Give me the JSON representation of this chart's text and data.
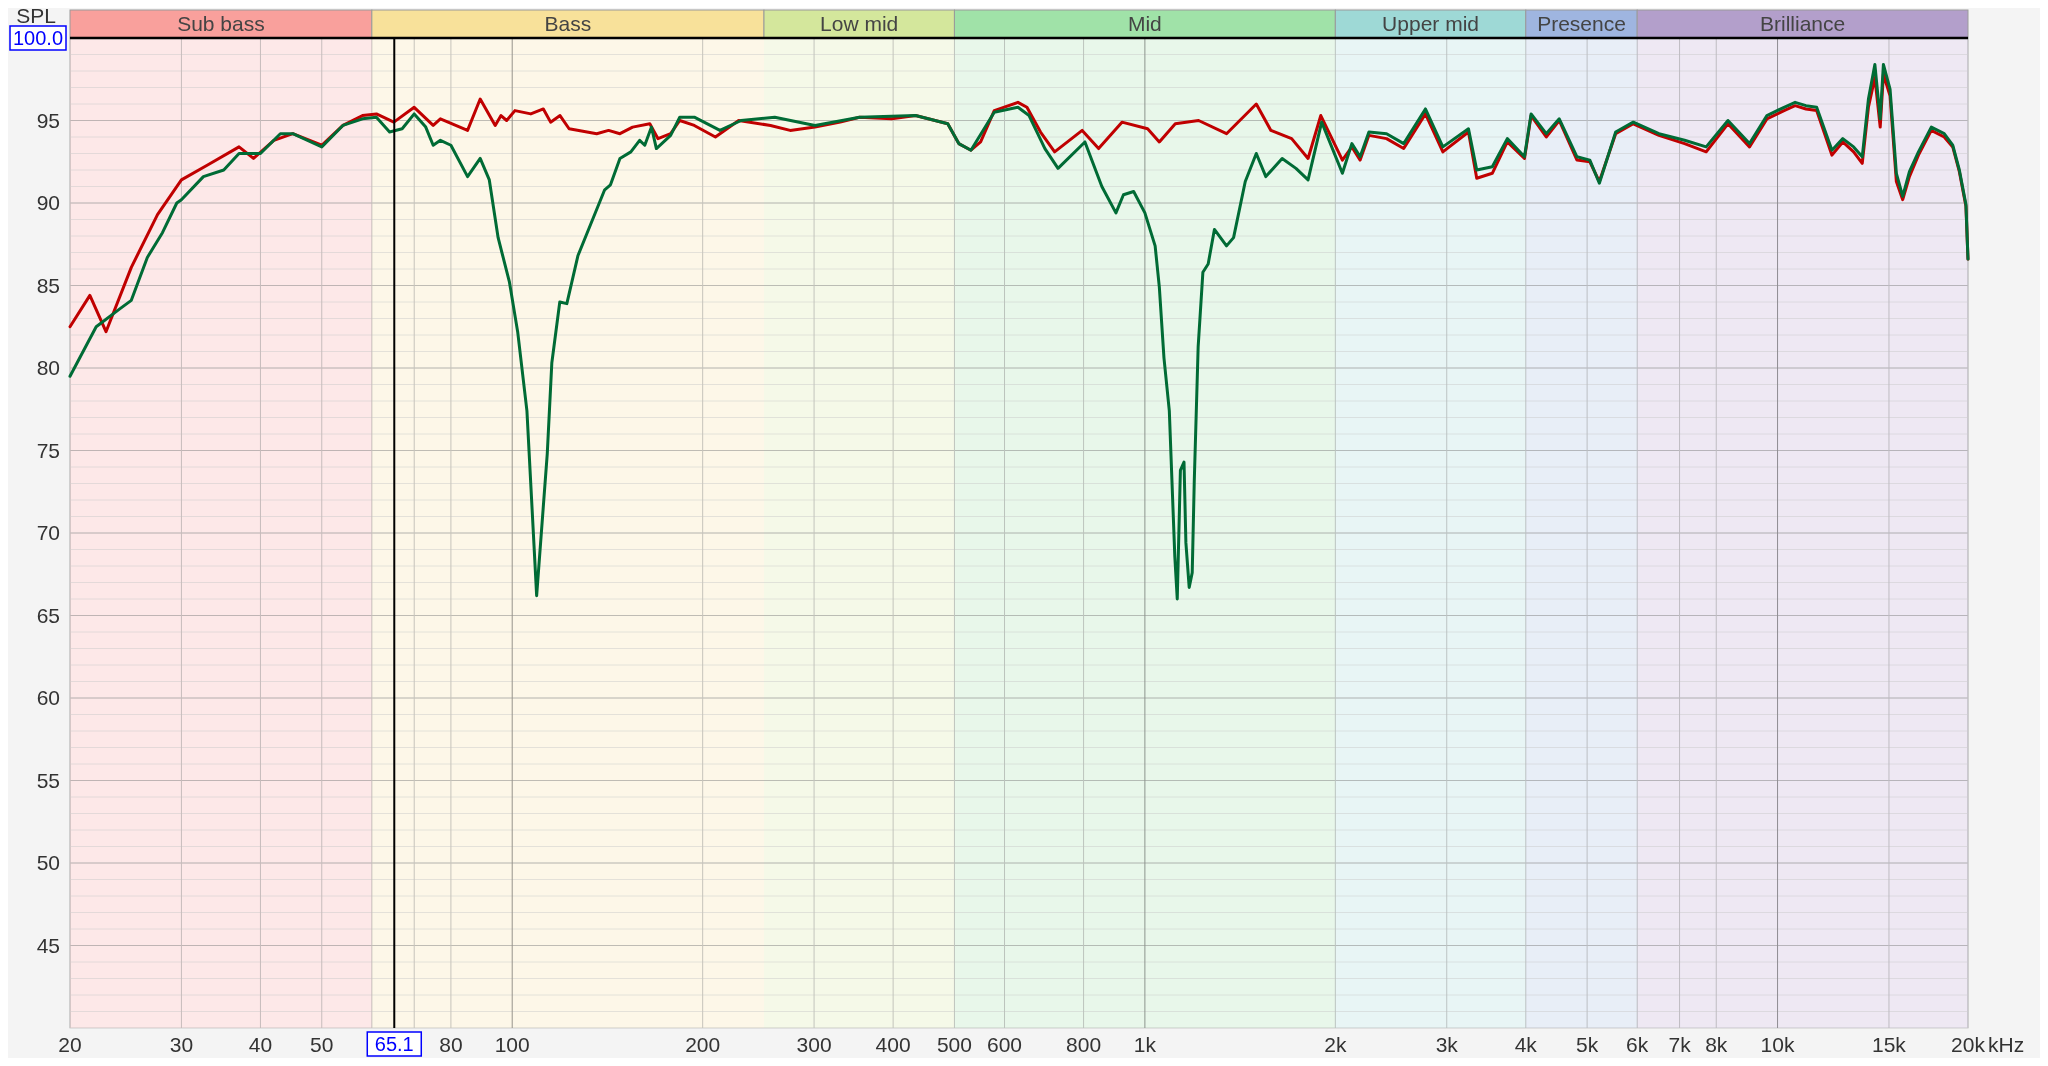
{
  "chart_data": {
    "type": "line",
    "ylabel": "SPL",
    "xlim": [
      20,
      20000
    ],
    "ylim": [
      40,
      100
    ],
    "xlabel": "kHz",
    "log": "x",
    "grid": true,
    "marker": "none",
    "line_style": "solid",
    "xticks": [
      20,
      30,
      40,
      50,
      {
        "value": 60,
        "label": null
      },
      {
        "value": 70,
        "label": null
      },
      80,
      100,
      200,
      300,
      400,
      500,
      600,
      800,
      {
        "value": 1000,
        "label": "1k"
      },
      {
        "value": 2000,
        "label": "2k"
      },
      {
        "value": 3000,
        "label": "3k"
      },
      {
        "value": 4000,
        "label": "4k"
      },
      {
        "value": 5000,
        "label": "5k"
      },
      {
        "value": 6000,
        "label": "6k"
      },
      {
        "value": 7000,
        "label": "7k"
      },
      {
        "value": 8000,
        "label": "8k"
      },
      {
        "value": 10000,
        "label": "10k"
      },
      {
        "value": 15000,
        "label": "15k"
      },
      {
        "value": 20000,
        "label": "20k"
      }
    ],
    "yticks": [
      45,
      50,
      55,
      60,
      65,
      70,
      75,
      80,
      85,
      90,
      95
    ],
    "bands": [
      {
        "axis": "x",
        "from": 20,
        "to": 60,
        "label": "Sub bass",
        "color": "#f9a09c"
      },
      {
        "axis": "x",
        "from": 60,
        "to": 250,
        "label": "Bass",
        "color": "#f8e19a"
      },
      {
        "axis": "x",
        "from": 250,
        "to": 500,
        "label": "Low mid",
        "color": "#d4e79c"
      },
      {
        "axis": "x",
        "from": 500,
        "to": 2000,
        "label": "Mid",
        "color": "#a0e2a8"
      },
      {
        "axis": "x",
        "from": 2000,
        "to": 4000,
        "label": "Upper mid",
        "color": "#9ed9d6"
      },
      {
        "axis": "x",
        "from": 4000,
        "to": 6000,
        "label": "Presence",
        "color": "#9fb5e0"
      },
      {
        "axis": "x",
        "from": 6000,
        "to": 20000,
        "label": "Brilliance",
        "color": "#b39fcb"
      }
    ],
    "ref_lines": [
      {
        "axis": "x",
        "value": 65.1,
        "label": "65.1",
        "color": "#000000"
      },
      {
        "axis": "y",
        "value": 100,
        "label": "100.0",
        "color": "#000000"
      }
    ],
    "series": [
      {
        "color": "#c00000",
        "x": [
          20,
          21.5,
          22.8,
          25,
          27.5,
          30,
          33,
          37,
          39,
          42,
          45,
          50,
          54,
          58,
          61,
          65,
          70,
          75,
          77,
          85,
          89,
          94,
          96,
          98,
          101,
          107,
          112,
          115,
          119,
          123,
          136,
          142,
          148,
          155,
          165,
          170,
          178,
          184,
          194,
          209.5,
          228,
          256,
          275,
          301,
          330,
          354,
          398,
          434,
          488,
          508,
          531,
          550,
          578,
          630,
          651,
          684,
          720,
          796,
          845,
          920,
          1010,
          1054,
          1117,
          1216,
          1346,
          1500,
          1582,
          1706,
          1811,
          1897,
          2052,
          2124,
          2189,
          2260,
          2410,
          2565,
          2776,
          2958,
          3247,
          3346,
          3541,
          3740,
          3981,
          4078,
          4309,
          4518,
          4819,
          5050,
          5228,
          5548,
          5915,
          6494,
          7130,
          7713,
          8349,
          9030,
          9620,
          10240,
          10660,
          11090,
          11530,
          12190,
          12680,
          13190,
          13610,
          13920,
          14250,
          14530,
          14700,
          15060,
          15410,
          15770,
          16160,
          16700,
          17500,
          18340,
          18920,
          19380,
          19850,
          20000
        ],
        "values": [
          82.5,
          84.4,
          82.2,
          86.1,
          89.3,
          91.4,
          92.3,
          93.4,
          92.7,
          93.8,
          94.2,
          93.5,
          94.7,
          95.3,
          95.4,
          94.9,
          95.8,
          94.7,
          95.1,
          94.4,
          96.3,
          94.7,
          95.3,
          95,
          95.6,
          95.4,
          95.7,
          94.9,
          95.3,
          94.5,
          94.2,
          94.4,
          94.2,
          94.6,
          94.8,
          93.9,
          94.2,
          95,
          94.7,
          94,
          95,
          94.7,
          94.4,
          94.6,
          94.9,
          95.2,
          95.1,
          95.3,
          94.8,
          93.6,
          93.2,
          93.7,
          95.6,
          96.1,
          95.8,
          94.3,
          93.1,
          94.4,
          93.3,
          94.9,
          94.5,
          93.7,
          94.8,
          95,
          94.2,
          96,
          94.4,
          93.9,
          92.7,
          95.3,
          92.6,
          93.4,
          92.6,
          94.1,
          93.9,
          93.3,
          95.4,
          93.1,
          94.3,
          91.5,
          91.8,
          93.7,
          92.7,
          95.3,
          94,
          95,
          92.6,
          92.5,
          91.3,
          94.2,
          94.8,
          94.1,
          93.6,
          93.1,
          94.8,
          93.4,
          95.1,
          95.6,
          95.9,
          95.7,
          95.6,
          92.9,
          93.7,
          93.1,
          92.4,
          95.8,
          97.6,
          94.6,
          97.8,
          96.5,
          91.3,
          90.2,
          91.6,
          92.9,
          94.4,
          94,
          93.4,
          91.9,
          89.8,
          86.6
        ]
      },
      {
        "color": "#006b35",
        "x": [
          20,
          22,
          24,
          25,
          26.5,
          28,
          29.5,
          30,
          32.5,
          35,
          37,
          40,
          43,
          45,
          50,
          54,
          58,
          61,
          64,
          67,
          70,
          73,
          75,
          77,
          80,
          85,
          89,
          92,
          95,
          99,
          102,
          105.5,
          109.3,
          113.6,
          115.5,
          118.9,
          122,
          127,
          133,
          140,
          143,
          148,
          154,
          159,
          162,
          166,
          169,
          178,
          184,
          194,
          213,
          230,
          260,
          301,
          354,
          434,
          488,
          508,
          531,
          578,
          630,
          656,
          695,
          729,
          804,
          855,
          900,
          925,
          960,
          1000,
          1038,
          1054,
          1072,
          1093,
          1115,
          1125,
          1138,
          1153,
          1161,
          1175,
          1188,
          1197,
          1214,
          1235,
          1259,
          1288,
          1346,
          1381,
          1441,
          1500,
          1553,
          1648,
          1733,
          1811,
          1903,
          2052,
          2124,
          2189,
          2260,
          2410,
          2565,
          2776,
          2958,
          3247,
          3346,
          3541,
          3740,
          3981,
          4078,
          4309,
          4518,
          4819,
          5050,
          5228,
          5548,
          5915,
          6494,
          7130,
          7713,
          8349,
          9030,
          9620,
          10240,
          10660,
          11090,
          11530,
          12190,
          12680,
          13190,
          13610,
          13920,
          14250,
          14530,
          14700,
          15060,
          15410,
          15770,
          16160,
          16700,
          17500,
          18340,
          18920,
          19380,
          19850,
          20000
        ],
        "values": [
          79.5,
          82.5,
          83.6,
          84.1,
          86.7,
          88.2,
          90,
          90.2,
          91.6,
          92,
          93,
          93,
          94.2,
          94.2,
          93.4,
          94.7,
          95.1,
          95.2,
          94.3,
          94.5,
          95.4,
          94.6,
          93.5,
          93.8,
          93.5,
          91.6,
          92.7,
          91.4,
          87.9,
          85.2,
          82.2,
          77.4,
          66.2,
          74.8,
          80.3,
          84,
          83.9,
          86.8,
          88.7,
          90.8,
          91.1,
          92.7,
          93.1,
          93.8,
          93.5,
          94.6,
          93.3,
          94.1,
          95.2,
          95.2,
          94.4,
          95,
          95.2,
          94.7,
          95.2,
          95.3,
          94.8,
          93.6,
          93.2,
          95.5,
          95.8,
          95.3,
          93.3,
          92.1,
          93.7,
          91,
          89.4,
          90.5,
          90.7,
          89.4,
          87.4,
          84.9,
          80.6,
          77.4,
          68.6,
          66,
          73.8,
          74.3,
          69.4,
          66.7,
          67.6,
          73.2,
          81.3,
          85.8,
          86.3,
          88.4,
          87.4,
          87.9,
          91.3,
          93,
          91.6,
          92.7,
          92.1,
          91.4,
          94.9,
          91.8,
          93.6,
          92.8,
          94.3,
          94.2,
          93.6,
          95.7,
          93.4,
          94.5,
          92,
          92.2,
          93.9,
          92.8,
          95.4,
          94.2,
          95.1,
          92.8,
          92.6,
          91.2,
          94.3,
          94.9,
          94.2,
          93.8,
          93.4,
          95,
          93.6,
          95.3,
          95.8,
          96.1,
          95.9,
          95.8,
          93.2,
          93.9,
          93.4,
          92.8,
          96.3,
          98.4,
          95.1,
          98.4,
          96.9,
          91.8,
          90.4,
          91.9,
          93.1,
          94.6,
          94.2,
          93.5,
          92,
          89.9,
          86.6
        ]
      }
    ]
  }
}
